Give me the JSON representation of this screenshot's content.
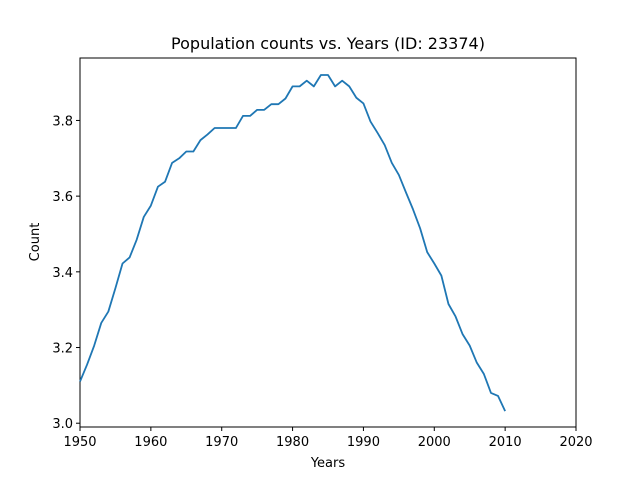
{
  "chart_data": {
    "type": "line",
    "title": "Population counts vs. Years (ID: 23374)",
    "xlabel": "Years",
    "ylabel": "Count",
    "xlim": [
      1950,
      2020
    ],
    "ylim": [
      2.99,
      3.965
    ],
    "grid": false,
    "x_ticks": [
      "1950",
      "1960",
      "1970",
      "1980",
      "1990",
      "2000",
      "2010",
      "2020"
    ],
    "y_ticks": [
      "3.0",
      "3.2",
      "3.4",
      "3.6",
      "3.8"
    ],
    "series": [
      {
        "color": "#1f77b4",
        "x": [
          1950,
          1951,
          1952,
          1953,
          1954,
          1955,
          1956,
          1957,
          1958,
          1959,
          1960,
          1961,
          1962,
          1963,
          1964,
          1965,
          1966,
          1967,
          1968,
          1969,
          1970,
          1971,
          1972,
          1973,
          1974,
          1975,
          1976,
          1977,
          1978,
          1979,
          1980,
          1981,
          1982,
          1983,
          1984,
          1985,
          1986,
          1987,
          1988,
          1989,
          1990,
          1991,
          1992,
          1993,
          1994,
          1995,
          1996,
          1997,
          1998,
          1999,
          2000,
          2001,
          2002,
          2003,
          2004,
          2005,
          2006,
          2007,
          2008,
          2009,
          2010
        ],
        "y": [
          3.11,
          3.155,
          3.205,
          3.265,
          3.295,
          3.357,
          3.422,
          3.438,
          3.485,
          3.545,
          3.575,
          3.625,
          3.638,
          3.688,
          3.7,
          3.718,
          3.718,
          3.748,
          3.763,
          3.78,
          3.78,
          3.78,
          3.78,
          3.812,
          3.812,
          3.828,
          3.828,
          3.843,
          3.843,
          3.858,
          3.89,
          3.89,
          3.905,
          3.89,
          3.92,
          3.92,
          3.89,
          3.905,
          3.89,
          3.86,
          3.845,
          3.797,
          3.767,
          3.735,
          3.688,
          3.656,
          3.61,
          3.565,
          3.515,
          3.452,
          3.422,
          3.39,
          3.315,
          3.282,
          3.235,
          3.205,
          3.16,
          3.13,
          3.08,
          3.072,
          3.032
        ]
      }
    ]
  }
}
